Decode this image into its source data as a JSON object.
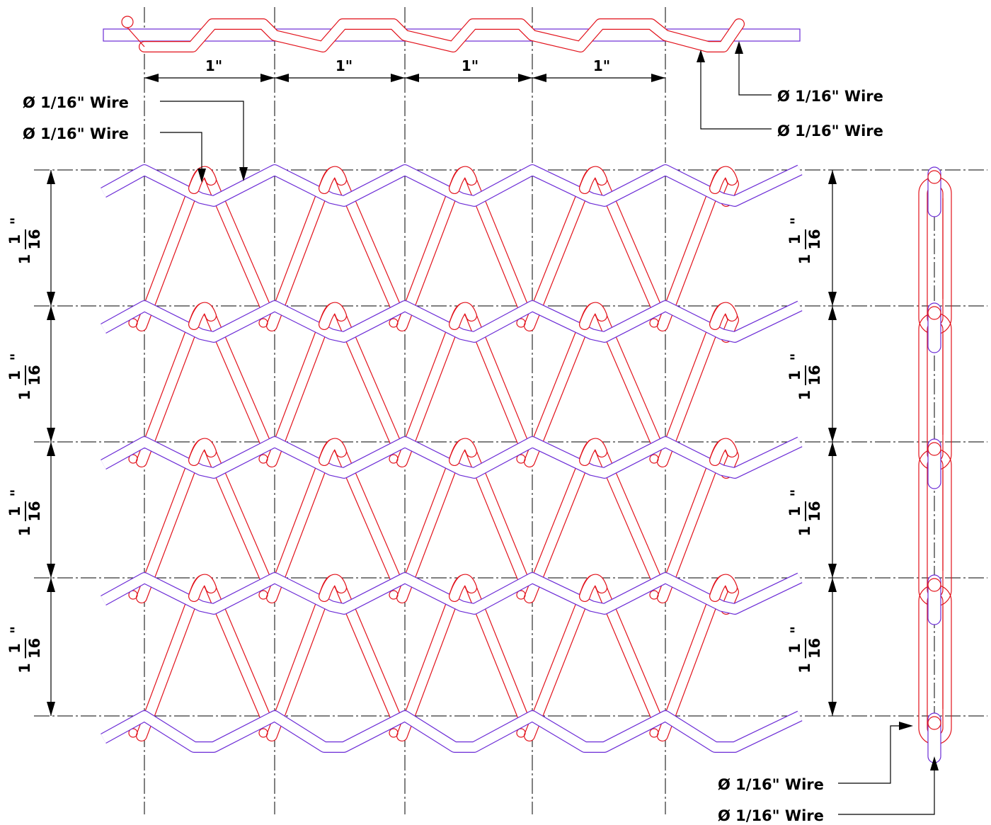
{
  "drawing": {
    "pitch_horizontal_label": "1\"",
    "pitch_vertical": {
      "whole": "1",
      "numerator": "1",
      "denominator": "16",
      "mark": "\""
    },
    "wire_callouts": {
      "top_left_1": "Ø 1/16\" Wire",
      "top_left_2": "Ø 1/16\" Wire",
      "top_right_1": "Ø 1/16\" Wire",
      "top_right_2": "Ø 1/16\" Wire",
      "bottom_right_1": "Ø 1/16\" Wire",
      "bottom_right_2": "Ø 1/16\" Wire"
    },
    "colors": {
      "spiral_wire": "#e2111a",
      "cross_rod": "#6b2bd6",
      "dimension_lines": "#000000"
    }
  }
}
